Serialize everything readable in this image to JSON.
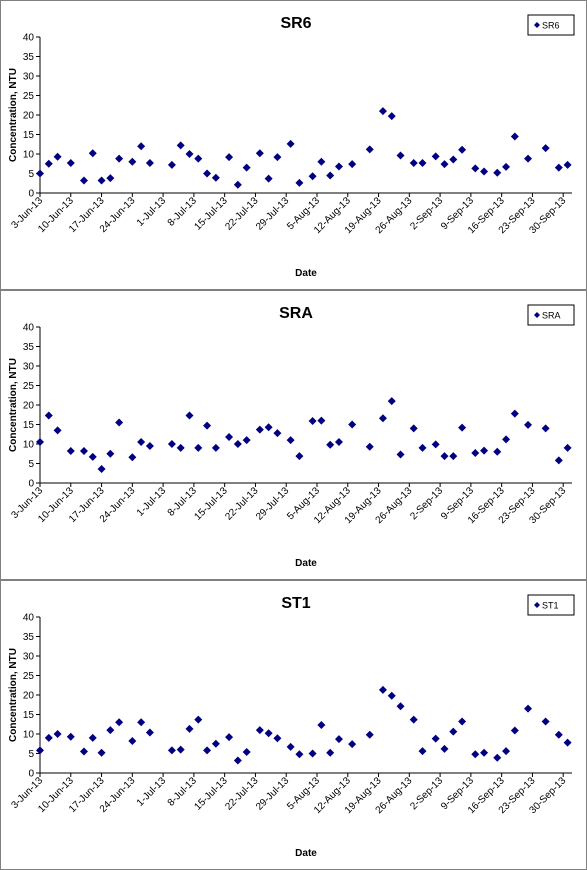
{
  "chart_data": [
    {
      "type": "scatter",
      "title": "SR6",
      "x_label": "Date",
      "y_label": "Concentration, NTU",
      "legend": "top-right",
      "x": [
        "2013-06-03",
        "2013-06-05",
        "2013-06-07",
        "2013-06-10",
        "2013-06-13",
        "2013-06-15",
        "2013-06-17",
        "2013-06-19",
        "2013-06-21",
        "2013-06-24",
        "2013-06-26",
        "2013-06-28",
        "2013-07-03",
        "2013-07-05",
        "2013-07-07",
        "2013-07-09",
        "2013-07-11",
        "2013-07-13",
        "2013-07-16",
        "2013-07-18",
        "2013-07-20",
        "2013-07-23",
        "2013-07-25",
        "2013-07-27",
        "2013-07-30",
        "2013-08-01",
        "2013-08-04",
        "2013-08-06",
        "2013-08-08",
        "2013-08-10",
        "2013-08-13",
        "2013-08-17",
        "2013-08-20",
        "2013-08-22",
        "2013-08-24",
        "2013-08-27",
        "2013-08-29",
        "2013-09-01",
        "2013-09-03",
        "2013-09-05",
        "2013-09-07",
        "2013-09-10",
        "2013-09-12",
        "2013-09-15",
        "2013-09-17",
        "2013-09-19",
        "2013-09-22",
        "2013-09-26",
        "2013-09-29",
        "2013-10-01"
      ],
      "series": [
        {
          "name": "SR6",
          "color": "#000080",
          "values": [
            5,
            7.5,
            9.3,
            7.7,
            3.2,
            10.2,
            3.2,
            3.8,
            8.8,
            8.0,
            12.0,
            7.7,
            7.2,
            12.2,
            10.0,
            8.8,
            5.0,
            3.9,
            9.2,
            2.1,
            6.5,
            10.2,
            3.7,
            9.2,
            12.6,
            2.6,
            4.3,
            8.0,
            4.5,
            6.8,
            7.4,
            11.2,
            21.0,
            19.7,
            9.6,
            7.7,
            7.7,
            9.4,
            7.4,
            8.6,
            11.1,
            6.3,
            5.5,
            5.2,
            6.7,
            14.5,
            8.8,
            11.5,
            6.5,
            7.2
          ]
        }
      ],
      "xlim": [
        "2013-06-03",
        "2013-10-02"
      ],
      "xticks": [
        {
          "value": "2013-06-03",
          "label": "3-Jun-13"
        },
        {
          "value": "2013-06-10",
          "label": "10-Jun-13"
        },
        {
          "value": "2013-06-17",
          "label": "17-Jun-13"
        },
        {
          "value": "2013-06-24",
          "label": "24-Jun-13"
        },
        {
          "value": "2013-07-01",
          "label": "1-Jul-13"
        },
        {
          "value": "2013-07-08",
          "label": "8-Jul-13"
        },
        {
          "value": "2013-07-15",
          "label": "15-Jul-13"
        },
        {
          "value": "2013-07-22",
          "label": "22-Jul-13"
        },
        {
          "value": "2013-07-29",
          "label": "29-Jul-13"
        },
        {
          "value": "2013-08-05",
          "label": "5-Aug-13"
        },
        {
          "value": "2013-08-12",
          "label": "12-Aug-13"
        },
        {
          "value": "2013-08-19",
          "label": "19-Aug-13"
        },
        {
          "value": "2013-08-26",
          "label": "26-Aug-13"
        },
        {
          "value": "2013-09-02",
          "label": "2-Sep-13"
        },
        {
          "value": "2013-09-09",
          "label": "9-Sep-13"
        },
        {
          "value": "2013-09-16",
          "label": "16-Sep-13"
        },
        {
          "value": "2013-09-23",
          "label": "23-Sep-13"
        },
        {
          "value": "2013-09-30",
          "label": "30-Sep-13"
        }
      ],
      "ylim": [
        0,
        40
      ],
      "yticks": [
        0,
        5,
        10,
        15,
        20,
        25,
        30,
        35,
        40
      ]
    },
    {
      "type": "scatter",
      "title": "SRA",
      "x_label": "Date",
      "y_label": "Concentration, NTU",
      "legend": "top-right",
      "x": [
        "2013-06-03",
        "2013-06-05",
        "2013-06-07",
        "2013-06-10",
        "2013-06-13",
        "2013-06-15",
        "2013-06-17",
        "2013-06-19",
        "2013-06-21",
        "2013-06-24",
        "2013-06-26",
        "2013-06-28",
        "2013-07-03",
        "2013-07-05",
        "2013-07-07",
        "2013-07-09",
        "2013-07-11",
        "2013-07-13",
        "2013-07-16",
        "2013-07-18",
        "2013-07-20",
        "2013-07-23",
        "2013-07-25",
        "2013-07-27",
        "2013-07-30",
        "2013-08-01",
        "2013-08-04",
        "2013-08-06",
        "2013-08-08",
        "2013-08-10",
        "2013-08-13",
        "2013-08-17",
        "2013-08-20",
        "2013-08-22",
        "2013-08-24",
        "2013-08-27",
        "2013-08-29",
        "2013-09-01",
        "2013-09-03",
        "2013-09-05",
        "2013-09-07",
        "2013-09-10",
        "2013-09-12",
        "2013-09-15",
        "2013-09-17",
        "2013-09-19",
        "2013-09-22",
        "2013-09-26",
        "2013-09-29",
        "2013-10-01"
      ],
      "series": [
        {
          "name": "SRA",
          "color": "#000080",
          "values": [
            10.5,
            17.3,
            13.5,
            8.2,
            8.2,
            6.7,
            3.6,
            7.5,
            15.5,
            6.6,
            10.5,
            9.5,
            10,
            9,
            17.3,
            9,
            14.7,
            9,
            11.8,
            10,
            11,
            13.7,
            14.3,
            12.8,
            11,
            6.9,
            15.9,
            16,
            9.8,
            10.5,
            15,
            9.3,
            16.6,
            21,
            7.3,
            14,
            9,
            9.9,
            6.9,
            6.9,
            14.2,
            7.7,
            8.3,
            8,
            11.2,
            17.8,
            14.9,
            14,
            5.8,
            9
          ]
        }
      ],
      "xlim": [
        "2013-06-03",
        "2013-10-02"
      ],
      "xticks": [
        {
          "value": "2013-06-03",
          "label": "3-Jun-13"
        },
        {
          "value": "2013-06-10",
          "label": "10-Jun-13"
        },
        {
          "value": "2013-06-17",
          "label": "17-Jun-13"
        },
        {
          "value": "2013-06-24",
          "label": "24-Jun-13"
        },
        {
          "value": "2013-07-01",
          "label": "1-Jul-13"
        },
        {
          "value": "2013-07-08",
          "label": "8-Jul-13"
        },
        {
          "value": "2013-07-15",
          "label": "15-Jul-13"
        },
        {
          "value": "2013-07-22",
          "label": "22-Jul-13"
        },
        {
          "value": "2013-07-29",
          "label": "29-Jul-13"
        },
        {
          "value": "2013-08-05",
          "label": "5-Aug-13"
        },
        {
          "value": "2013-08-12",
          "label": "12-Aug-13"
        },
        {
          "value": "2013-08-19",
          "label": "19-Aug-13"
        },
        {
          "value": "2013-08-26",
          "label": "26-Aug-13"
        },
        {
          "value": "2013-09-02",
          "label": "2-Sep-13"
        },
        {
          "value": "2013-09-09",
          "label": "9-Sep-13"
        },
        {
          "value": "2013-09-16",
          "label": "16-Sep-13"
        },
        {
          "value": "2013-09-23",
          "label": "23-Sep-13"
        },
        {
          "value": "2013-09-30",
          "label": "30-Sep-13"
        }
      ],
      "ylim": [
        0,
        40
      ],
      "yticks": [
        0,
        5,
        10,
        15,
        20,
        25,
        30,
        35,
        40
      ]
    },
    {
      "type": "scatter",
      "title": "ST1",
      "x_label": "Date",
      "y_label": "Concentration, NTU",
      "legend": "top-right",
      "x": [
        "2013-06-03",
        "2013-06-05",
        "2013-06-07",
        "2013-06-10",
        "2013-06-13",
        "2013-06-15",
        "2013-06-17",
        "2013-06-19",
        "2013-06-21",
        "2013-06-24",
        "2013-06-26",
        "2013-06-28",
        "2013-07-03",
        "2013-07-05",
        "2013-07-07",
        "2013-07-09",
        "2013-07-11",
        "2013-07-13",
        "2013-07-16",
        "2013-07-18",
        "2013-07-20",
        "2013-07-23",
        "2013-07-25",
        "2013-07-27",
        "2013-07-30",
        "2013-08-01",
        "2013-08-04",
        "2013-08-06",
        "2013-08-08",
        "2013-08-10",
        "2013-08-13",
        "2013-08-17",
        "2013-08-20",
        "2013-08-22",
        "2013-08-24",
        "2013-08-27",
        "2013-08-29",
        "2013-09-01",
        "2013-09-03",
        "2013-09-05",
        "2013-09-07",
        "2013-09-10",
        "2013-09-12",
        "2013-09-15",
        "2013-09-17",
        "2013-09-19",
        "2013-09-22",
        "2013-09-26",
        "2013-09-29",
        "2013-10-01"
      ],
      "series": [
        {
          "name": "ST1",
          "color": "#000080",
          "values": [
            5.8,
            9,
            10,
            9.3,
            5.5,
            9,
            5.2,
            11,
            13,
            8.2,
            13,
            10.4,
            5.8,
            6,
            11.3,
            13.7,
            5.8,
            7.5,
            9.2,
            3.2,
            5.4,
            11,
            10.2,
            8.9,
            6.7,
            4.8,
            5,
            12.3,
            5.2,
            8.7,
            7.4,
            9.8,
            21.3,
            19.8,
            17.1,
            13.7,
            5.6,
            8.8,
            6.2,
            10.6,
            13.2,
            4.8,
            5.2,
            3.9,
            5.6,
            10.9,
            16.5,
            13.2,
            9.8,
            7.8
          ]
        }
      ],
      "xlim": [
        "2013-06-03",
        "2013-10-02"
      ],
      "xticks": [
        {
          "value": "2013-06-03",
          "label": "3-Jun-13"
        },
        {
          "value": "2013-06-10",
          "label": "10-Jun-13"
        },
        {
          "value": "2013-06-17",
          "label": "17-Jun-13"
        },
        {
          "value": "2013-06-24",
          "label": "24-Jun-13"
        },
        {
          "value": "2013-07-01",
          "label": "1-Jul-13"
        },
        {
          "value": "2013-07-08",
          "label": "8-Jul-13"
        },
        {
          "value": "2013-07-15",
          "label": "15-Jul-13"
        },
        {
          "value": "2013-07-22",
          "label": "22-Jul-13"
        },
        {
          "value": "2013-07-29",
          "label": "29-Jul-13"
        },
        {
          "value": "2013-08-05",
          "label": "5-Aug-13"
        },
        {
          "value": "2013-08-12",
          "label": "12-Aug-13"
        },
        {
          "value": "2013-08-19",
          "label": "19-Aug-13"
        },
        {
          "value": "2013-08-26",
          "label": "26-Aug-13"
        },
        {
          "value": "2013-09-02",
          "label": "2-Sep-13"
        },
        {
          "value": "2013-09-09",
          "label": "9-Sep-13"
        },
        {
          "value": "2013-09-16",
          "label": "16-Sep-13"
        },
        {
          "value": "2013-09-23",
          "label": "23-Sep-13"
        },
        {
          "value": "2013-09-30",
          "label": "30-Sep-13"
        }
      ],
      "ylim": [
        0,
        40
      ],
      "yticks": [
        0,
        5,
        10,
        15,
        20,
        25,
        30,
        35,
        40
      ]
    }
  ]
}
